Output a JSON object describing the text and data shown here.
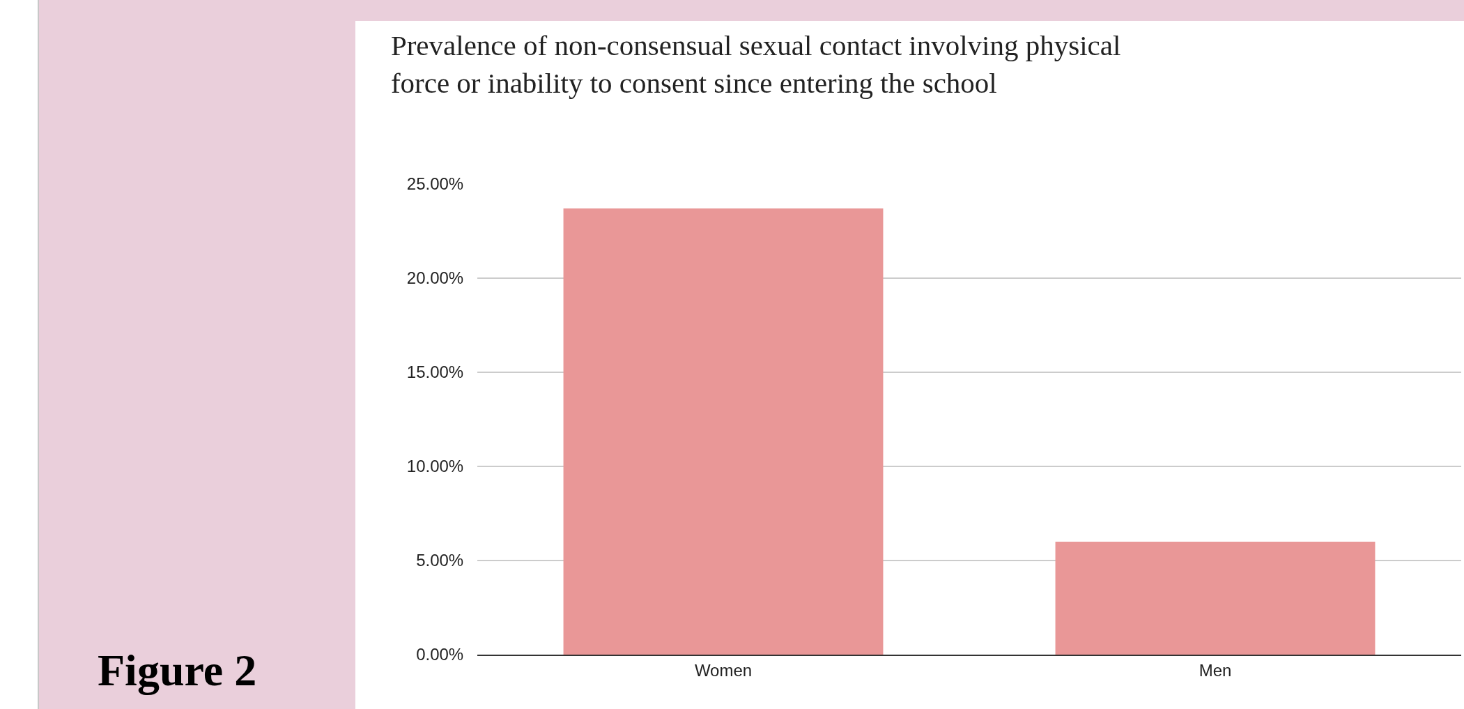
{
  "chart_data": {
    "type": "bar",
    "title": "Prevalence of non-consensual sexual contact involving physical force or inability to consent since entering the school",
    "categories": [
      "Women",
      "Men"
    ],
    "values": [
      23.7,
      6.0
    ],
    "color": "#e99797",
    "ylim": [
      0,
      25
    ],
    "yticks": [
      {
        "value": 0,
        "label": "0.00%"
      },
      {
        "value": 5,
        "label": "5.00%"
      },
      {
        "value": 10,
        "label": "10.00%"
      },
      {
        "value": 15,
        "label": "15.00%"
      },
      {
        "value": 20,
        "label": "20.00%"
      },
      {
        "value": 25,
        "label": "25.00%"
      }
    ],
    "grid": "y",
    "legend": false,
    "annotations": [
      "Figure 2"
    ]
  }
}
